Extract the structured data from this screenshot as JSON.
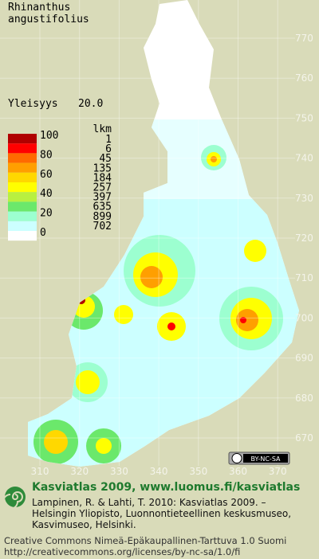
{
  "species": [
    "Rhinanthus",
    "angustifolius"
  ],
  "frequency": {
    "label": "Yleisyys",
    "value": "20.0"
  },
  "legend": {
    "scale_labels": [
      "100",
      "80",
      "60",
      "40",
      "20",
      "0"
    ],
    "count_header": "lkm",
    "counts": [
      "1",
      "6",
      "45",
      "135",
      "184",
      "257",
      "397",
      "635",
      "899",
      "702"
    ],
    "colors": [
      "#b00000",
      "#ff0000",
      "#ff6a00",
      "#ff9f00",
      "#ffd800",
      "#ffff00",
      "#b8f040",
      "#6be86b",
      "#9cffd0",
      "#ccffff"
    ]
  },
  "grid": {
    "x_labels": [
      "310",
      "320",
      "330",
      "340",
      "350",
      "360",
      "370"
    ],
    "y_labels": [
      "770",
      "760",
      "750",
      "740",
      "730",
      "720",
      "710",
      "700",
      "690",
      "680",
      "670"
    ]
  },
  "badge": "BY-NC-SA",
  "footer": {
    "title": "Kasviatlas 2009, www.luomus.fi/kasviatlas",
    "citation": [
      "Lampinen, R. & Lahti, T. 2010: Kasviatlas 2009. –",
      "Helsingin Yliopisto, Luonnontieteellinen keskusmuseo,",
      "Kasvimuseo, Helsinki."
    ],
    "license": [
      "Creative Commons Nimeä-Epäkaupallinen-Tarttuva 1.0 Suomi",
      "http://creativecommons.org/licenses/by-nc-sa/1.0/fi"
    ]
  }
}
